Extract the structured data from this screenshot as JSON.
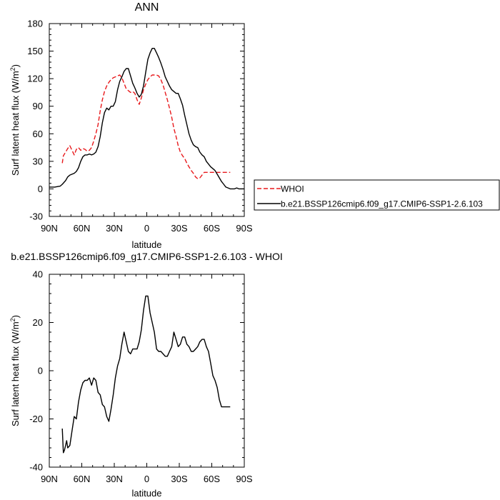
{
  "chart_data": [
    {
      "type": "line",
      "title": "ANN",
      "xlabel": "latitude",
      "ylabel_main": "Surf latent heat flux (W/m",
      "ylabel_sup": "2",
      "ylabel_tail": ")",
      "xlim": [
        90,
        -90
      ],
      "ylim": [
        -30,
        180
      ],
      "xticks": [
        90,
        60,
        30,
        0,
        -30,
        -60,
        -90
      ],
      "xtick_labels": [
        "90N",
        "60N",
        "30N",
        "0",
        "30S",
        "60S",
        "90S"
      ],
      "yticks": [
        -30,
        0,
        30,
        60,
        90,
        120,
        150,
        180
      ],
      "ytick_labels": [
        "-30",
        "0",
        "30",
        "60",
        "90",
        "120",
        "150",
        "180"
      ],
      "grid": false,
      "legend_position": "right",
      "series": [
        {
          "name": "WHOI",
          "color": "#e8191c",
          "dash": "dashed",
          "x": [
            78,
            77,
            75,
            73,
            71,
            69,
            67,
            65,
            63,
            61,
            59,
            57,
            55,
            53,
            51,
            49,
            47,
            45,
            43,
            41,
            39,
            37,
            35,
            33,
            31,
            29,
            27,
            25,
            23,
            21,
            19,
            17,
            15,
            13,
            11,
            9,
            7,
            5,
            3,
            1,
            -1,
            -3,
            -5,
            -7,
            -9,
            -11,
            -13,
            -15,
            -17,
            -19,
            -21,
            -23,
            -25,
            -27,
            -29,
            -31,
            -33,
            -35,
            -37,
            -39,
            -41,
            -43,
            -45,
            -47,
            -49,
            -51,
            -53,
            -55,
            -57,
            -59,
            -61,
            -63,
            -65,
            -67,
            -69,
            -71,
            -73,
            -75,
            -77
          ],
          "y": [
            28,
            36,
            40,
            44,
            47,
            42,
            37,
            43,
            45,
            42,
            44,
            43,
            41,
            42,
            45,
            52,
            60,
            70,
            85,
            97,
            106,
            112,
            116,
            119,
            121,
            122,
            123,
            124,
            121,
            115,
            109,
            107,
            105,
            106,
            104,
            97,
            92,
            99,
            108,
            114,
            119,
            122,
            124,
            124,
            124,
            123,
            119,
            113,
            105,
            97,
            88,
            78,
            66,
            57,
            47,
            40,
            36,
            33,
            28,
            24,
            20,
            17,
            13,
            11,
            12,
            15,
            18,
            18,
            18,
            18,
            18,
            18,
            18,
            18,
            18,
            18,
            18,
            18,
            18
          ]
        },
        {
          "name": "b.e21.BSSP126cmip6.f09_g17.CMIP6-SSP1-2.6.103",
          "color": "#000000",
          "dash": "solid",
          "x": [
            90,
            85,
            80,
            78,
            75,
            73,
            71,
            69,
            67,
            65,
            63,
            61,
            59,
            57,
            55,
            53,
            51,
            49,
            47,
            45,
            43,
            41,
            39,
            37,
            35,
            33,
            31,
            29,
            27,
            25,
            23,
            21,
            19,
            17,
            15,
            13,
            11,
            9,
            7,
            5,
            3,
            1,
            -1,
            -3,
            -5,
            -7,
            -9,
            -11,
            -13,
            -15,
            -17,
            -19,
            -21,
            -23,
            -25,
            -27,
            -29,
            -31,
            -33,
            -35,
            -37,
            -39,
            -41,
            -43,
            -45,
            -47,
            -49,
            -51,
            -53,
            -55,
            -57,
            -59,
            -61,
            -63,
            -65,
            -67,
            -69,
            -71,
            -73,
            -75,
            -77,
            -79,
            -81,
            -83,
            -85,
            -87,
            -90
          ],
          "y": [
            2,
            2,
            3,
            5,
            9,
            13,
            15,
            16,
            17,
            19,
            23,
            30,
            35,
            37,
            37,
            38,
            37,
            38,
            40,
            46,
            57,
            72,
            83,
            88,
            86,
            90,
            90,
            95,
            108,
            117,
            122,
            128,
            131,
            131,
            123,
            115,
            110,
            104,
            100,
            103,
            112,
            127,
            141,
            148,
            153,
            153,
            148,
            143,
            137,
            130,
            122,
            117,
            112,
            108,
            106,
            104,
            104,
            98,
            91,
            80,
            70,
            60,
            53,
            48,
            46,
            45,
            40,
            37,
            35,
            30,
            27,
            24,
            22,
            20,
            16,
            12,
            8,
            5,
            2,
            1,
            0,
            0,
            0,
            1,
            0,
            0,
            0
          ]
        }
      ]
    },
    {
      "type": "line",
      "title": "b.e21.BSSP126cmip6.f09_g17.CMIP6-SSP1-2.6.103 - WHOI",
      "xlabel": "latitude",
      "ylabel_main": "Surf latent heat flux (W/m",
      "ylabel_sup": "2",
      "ylabel_tail": ")",
      "xlim": [
        90,
        -90
      ],
      "ylim": [
        -40,
        40
      ],
      "xticks": [
        90,
        60,
        30,
        0,
        -30,
        -60,
        -90
      ],
      "xtick_labels": [
        "90N",
        "60N",
        "30N",
        "0",
        "30S",
        "60S",
        "90S"
      ],
      "yticks": [
        -40,
        -20,
        0,
        20,
        40
      ],
      "ytick_labels": [
        "-40",
        "-20",
        "0",
        "20",
        "40"
      ],
      "grid": false,
      "series": [
        {
          "color": "#000000",
          "dash": "solid",
          "x": [
            78,
            77,
            76,
            75,
            74,
            73,
            71,
            69,
            67,
            65,
            63,
            61,
            59,
            57,
            55,
            53,
            51,
            49,
            47,
            45,
            43,
            41,
            39,
            37,
            35,
            33,
            31,
            29,
            27,
            25,
            23,
            21,
            19,
            17,
            15,
            13,
            11,
            9,
            7,
            5,
            3,
            1,
            -1,
            -3,
            -5,
            -7,
            -9,
            -11,
            -13,
            -15,
            -17,
            -19,
            -21,
            -23,
            -25,
            -27,
            -29,
            -31,
            -33,
            -35,
            -37,
            -39,
            -41,
            -43,
            -45,
            -47,
            -49,
            -51,
            -53,
            -55,
            -57,
            -59,
            -61,
            -63,
            -65,
            -67,
            -69,
            -71,
            -73,
            -75,
            -77
          ],
          "y": [
            -24,
            -34,
            -33,
            -31,
            -29,
            -32,
            -31,
            -25,
            -19,
            -20,
            -13,
            -8,
            -5,
            -4,
            -4,
            -3,
            -6,
            -3,
            -4,
            -9,
            -10,
            -14,
            -15,
            -19,
            -21,
            -16,
            -10,
            -3,
            2,
            5,
            11,
            16,
            12,
            8,
            7,
            9,
            9,
            9,
            12,
            17,
            25,
            31,
            31,
            24,
            20,
            16,
            9,
            8,
            8,
            7,
            6,
            6,
            8,
            10,
            16,
            13,
            10,
            11,
            14,
            14,
            11,
            10,
            8,
            8,
            9,
            10,
            12,
            13,
            13,
            10,
            8,
            3,
            -2,
            -4,
            -7,
            -12,
            -15,
            -15,
            -15,
            -15,
            -15
          ]
        }
      ]
    }
  ]
}
